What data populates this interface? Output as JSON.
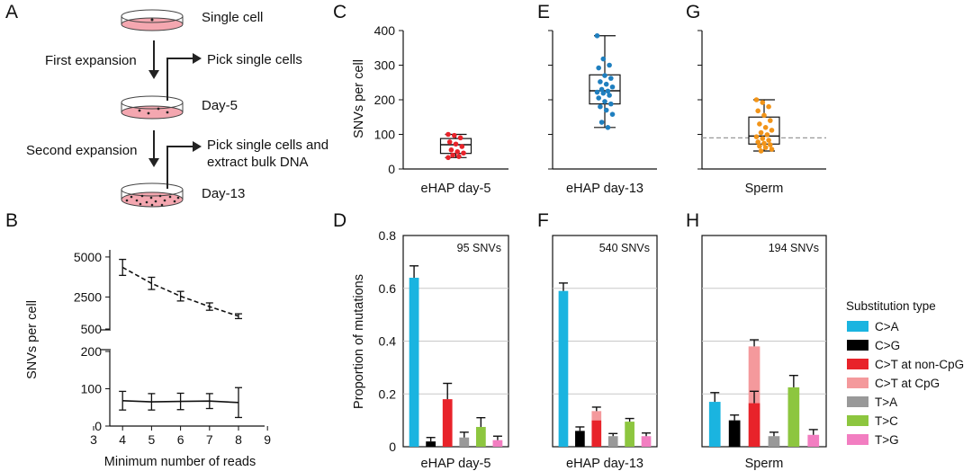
{
  "panel_letters": {
    "a": "A",
    "b": "B",
    "c": "C",
    "d": "D",
    "e": "E",
    "f": "F",
    "g": "G",
    "h": "H"
  },
  "schematic": {
    "steps": [
      "Single cell",
      "Day-5",
      "Day-13"
    ],
    "expansions": [
      "First expansion",
      "Second expansion"
    ],
    "picks": [
      "Pick single cells",
      "Pick single cells and",
      "extract bulk DNA"
    ]
  },
  "colors": {
    "C>A": "#1ab4e0",
    "C>G": "#000000",
    "C>T at non-CpG": "#e8232a",
    "C>T at CpG": "#f4999c",
    "T>A": "#999999",
    "T>C": "#8dc63f",
    "T>G": "#f27ec1",
    "dots_day5": "#e8232a",
    "dots_day13": "#1f7fbf",
    "dots_sperm": "#f29418",
    "dish_fill": "#f4a7b0"
  },
  "chart_data": [
    {
      "panel": "B",
      "type": "line",
      "xlabel": "Minimum number of reads",
      "ylabel": "SNVs per cell",
      "xlim": [
        3,
        9
      ],
      "xticks": [
        "3",
        "4",
        "5",
        "6",
        "7",
        "8",
        "9"
      ],
      "yticks_lower": [
        "0",
        "100",
        "200"
      ],
      "yticks_upper": [
        "500",
        "2500",
        "5000"
      ],
      "axis_break": "between 200 and 500",
      "series": [
        {
          "name": "upper (dashed)",
          "x": [
            4,
            5,
            6,
            7,
            8
          ],
          "y": [
            4350,
            3350,
            2550,
            1900,
            1300
          ],
          "err": [
            500,
            380,
            300,
            230,
            150
          ]
        },
        {
          "name": "lower (solid)",
          "x": [
            4,
            5,
            6,
            7,
            8
          ],
          "y": [
            68,
            65,
            66,
            67,
            63
          ],
          "err": [
            25,
            22,
            22,
            20,
            40
          ]
        }
      ]
    },
    {
      "panel": "C",
      "type": "box",
      "ylabel": "SNVs per cell",
      "ylim": [
        0,
        400
      ],
      "yticks": [
        "0",
        "100",
        "200",
        "300",
        "400"
      ],
      "xlabel": "eHAP day-5",
      "box": {
        "min": 33,
        "q1": 45,
        "median": 70,
        "q3": 88,
        "max": 100
      },
      "points": [
        100,
        97,
        90,
        78,
        72,
        65,
        55,
        50,
        46,
        40,
        36,
        33
      ]
    },
    {
      "panel": "E",
      "type": "box",
      "ylim": [
        0,
        400
      ],
      "xlabel": "eHAP day-13",
      "box": {
        "min": 120,
        "q1": 188,
        "median": 226,
        "q3": 272,
        "max": 385
      },
      "points": [
        385,
        318,
        300,
        292,
        270,
        262,
        252,
        245,
        237,
        230,
        225,
        222,
        219,
        213,
        205,
        195,
        188,
        180,
        170,
        158,
        135,
        120
      ]
    },
    {
      "panel": "G",
      "type": "box",
      "ylim": [
        0,
        400
      ],
      "xlabel": "Sperm",
      "reference_line": 90,
      "box": {
        "min": 52,
        "q1": 72,
        "median": 95,
        "q3": 150,
        "max": 200
      },
      "points": [
        200,
        192,
        180,
        168,
        155,
        140,
        130,
        120,
        112,
        105,
        99,
        93,
        88,
        83,
        78,
        74,
        70,
        66,
        62,
        57,
        52
      ]
    },
    {
      "panel": "D",
      "type": "bar",
      "ylabel": "Proportion of mutations",
      "ylim": [
        0,
        0.8
      ],
      "yticks": [
        "0",
        "0.2",
        "0.4",
        "0.6",
        "0.8"
      ],
      "xlabel": "eHAP day-5",
      "note": "95 SNVs",
      "bars": [
        {
          "type": "C>A",
          "value": 0.64,
          "err": 0.045
        },
        {
          "type": "C>G",
          "value": 0.02,
          "err": 0.015
        },
        {
          "type": "C>T",
          "non_cpg": 0.18,
          "cpg": 0.0,
          "err": 0.06
        },
        {
          "type": "T>A",
          "value": 0.035,
          "err": 0.02
        },
        {
          "type": "T>C",
          "value": 0.075,
          "err": 0.035
        },
        {
          "type": "T>G",
          "value": 0.025,
          "err": 0.015
        }
      ]
    },
    {
      "panel": "F",
      "type": "bar",
      "ylim": [
        0,
        0.8
      ],
      "xlabel": "eHAP day-13",
      "note": "540 SNVs",
      "bars": [
        {
          "type": "C>A",
          "value": 0.59,
          "err": 0.03
        },
        {
          "type": "C>G",
          "value": 0.06,
          "err": 0.015
        },
        {
          "type": "C>T",
          "non_cpg": 0.1,
          "cpg": 0.035,
          "err": 0.015
        },
        {
          "type": "T>A",
          "value": 0.04,
          "err": 0.01
        },
        {
          "type": "T>C",
          "value": 0.095,
          "err": 0.012
        },
        {
          "type": "T>G",
          "value": 0.04,
          "err": 0.012
        }
      ]
    },
    {
      "panel": "H",
      "type": "bar",
      "ylim": [
        0,
        0.8
      ],
      "xlabel": "Sperm",
      "note": "194 SNVs",
      "bars": [
        {
          "type": "C>A",
          "value": 0.17,
          "err": 0.035
        },
        {
          "type": "C>G",
          "value": 0.1,
          "err": 0.02
        },
        {
          "type": "C>T",
          "non_cpg": 0.165,
          "cpg": 0.215,
          "err_total": 0.025,
          "err_nc": 0.045
        },
        {
          "type": "T>A",
          "value": 0.04,
          "err": 0.015
        },
        {
          "type": "T>C",
          "value": 0.225,
          "err": 0.045
        },
        {
          "type": "T>G",
          "value": 0.045,
          "err": 0.02
        }
      ]
    }
  ],
  "legend": {
    "title": "Substitution type",
    "items": [
      "C>A",
      "C>G",
      "C>T at non-CpG",
      "C>T at CpG",
      "T>A",
      "T>C",
      "T>G"
    ]
  }
}
